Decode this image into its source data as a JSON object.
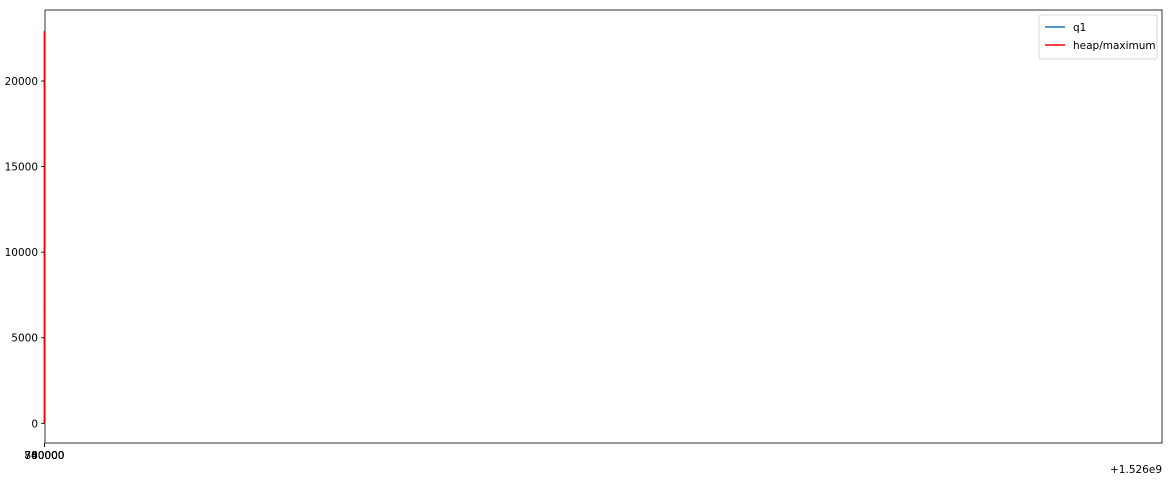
{
  "chart_data": {
    "type": "line",
    "title": "",
    "xlabel": "",
    "ylabel": "",
    "x_offset_label": "+1.526e9",
    "xlim": [
      1525600,
      1526113150
    ],
    "ylim": [
      -1150,
      24150
    ],
    "x_ticks": [
      740000,
      760000,
      780000,
      800000
    ],
    "x_tick_labels": [
      "740000",
      "760000",
      "780000",
      "800000"
    ],
    "y_ticks": [
      0,
      5000,
      10000,
      15000,
      20000
    ],
    "y_tick_labels": [
      "0",
      "5000",
      "10000",
      "15000",
      "20000"
    ],
    "grid": false,
    "legend_position": "top-right",
    "series": [
      {
        "name": "q1",
        "color": "#1f77b4",
        "points": [
          [
            728500,
            0
          ],
          [
            729500,
            0
          ],
          [
            730300,
            22900
          ],
          [
            731000,
            0
          ],
          [
            740300,
            0
          ],
          [
            740700,
            4500
          ],
          [
            741200,
            0
          ],
          [
            743900,
            0
          ],
          [
            744500,
            2750
          ],
          [
            745000,
            0
          ],
          [
            746300,
            0
          ],
          [
            746900,
            2900
          ],
          [
            747400,
            0
          ],
          [
            759000,
            0
          ],
          [
            759400,
            11700
          ],
          [
            759900,
            0
          ],
          [
            770300,
            0
          ],
          [
            770800,
            5700
          ],
          [
            771300,
            0
          ],
          [
            772800,
            0
          ],
          [
            773200,
            14600
          ],
          [
            773700,
            0
          ],
          [
            784600,
            0
          ],
          [
            785000,
            100
          ],
          [
            785700,
            1000
          ],
          [
            786300,
            1100
          ],
          [
            786900,
            0
          ],
          [
            787600,
            1500
          ],
          [
            788200,
            0
          ],
          [
            788700,
            2000
          ],
          [
            789300,
            1900
          ],
          [
            789700,
            0
          ],
          [
            794500,
            0
          ],
          [
            794900,
            5750
          ],
          [
            795500,
            0
          ],
          [
            796100,
            4500
          ],
          [
            796700,
            1000
          ],
          [
            797300,
            5200
          ],
          [
            797900,
            0
          ],
          [
            798500,
            5900
          ],
          [
            799000,
            0
          ],
          [
            799500,
            0
          ],
          [
            800100,
            13800
          ],
          [
            800700,
            0
          ],
          [
            801400,
            13700
          ],
          [
            802000,
            1800
          ],
          [
            802600,
            0
          ],
          [
            803300,
            0
          ],
          [
            803900,
            14100
          ],
          [
            804500,
            0
          ],
          [
            805200,
            0
          ],
          [
            805700,
            1300
          ],
          [
            806300,
            0
          ],
          [
            806900,
            0
          ],
          [
            807500,
            3700
          ],
          [
            808100,
            0
          ],
          [
            808800,
            0
          ],
          [
            809400,
            6700
          ],
          [
            810000,
            0
          ],
          [
            810600,
            0
          ],
          [
            811000,
            6000
          ],
          [
            811200,
            12400
          ],
          [
            811900,
            7600
          ]
        ]
      },
      {
        "name": "heap/maximum",
        "color": "#ff0000",
        "points": [
          [
            728500,
            0
          ],
          [
            734000,
            1950
          ],
          [
            735100,
            3350
          ],
          [
            740300,
            3750
          ],
          [
            743300,
            7550
          ],
          [
            754200,
            7600
          ],
          [
            754400,
            10200
          ],
          [
            756000,
            10400
          ],
          [
            756300,
            10450
          ],
          [
            757800,
            10450
          ],
          [
            758000,
            12600
          ],
          [
            759900,
            12650
          ],
          [
            760000,
            12850
          ],
          [
            761500,
            12900
          ],
          [
            761600,
            13350
          ],
          [
            767100,
            13400
          ],
          [
            767200,
            14050
          ],
          [
            785000,
            14450
          ],
          [
            785500,
            14900
          ],
          [
            785600,
            22400
          ],
          [
            799400,
            22900
          ]
        ]
      }
    ]
  }
}
